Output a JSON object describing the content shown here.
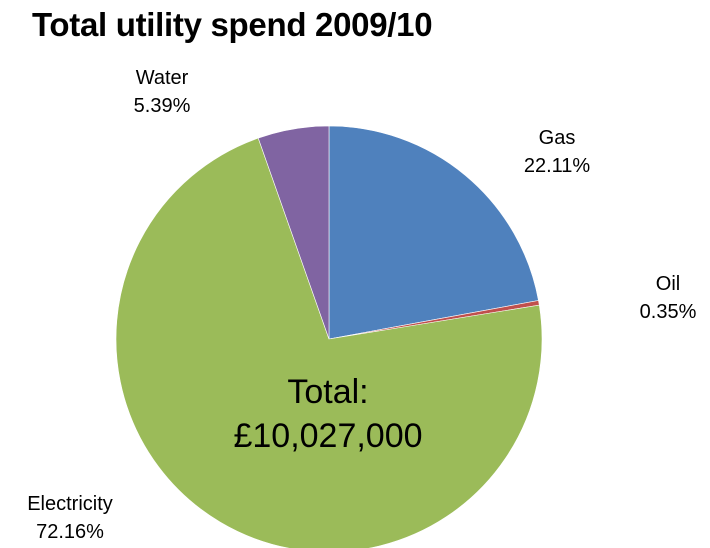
{
  "chart_data": {
    "type": "pie",
    "title": "Total utility spend 2009/10",
    "categories": [
      "Gas",
      "Oil",
      "Electricity",
      "Water"
    ],
    "values": [
      22.11,
      0.35,
      72.16,
      5.39
    ],
    "labels": [
      "22.11%",
      "0.35%",
      "72.16%",
      "5.39%"
    ],
    "colors": [
      "#4f81bd",
      "#c0504d",
      "#9bbb59",
      "#8064a2"
    ],
    "center_annotation": {
      "line1": "Total:",
      "line2": "£10,027,000"
    },
    "legend": "none"
  }
}
